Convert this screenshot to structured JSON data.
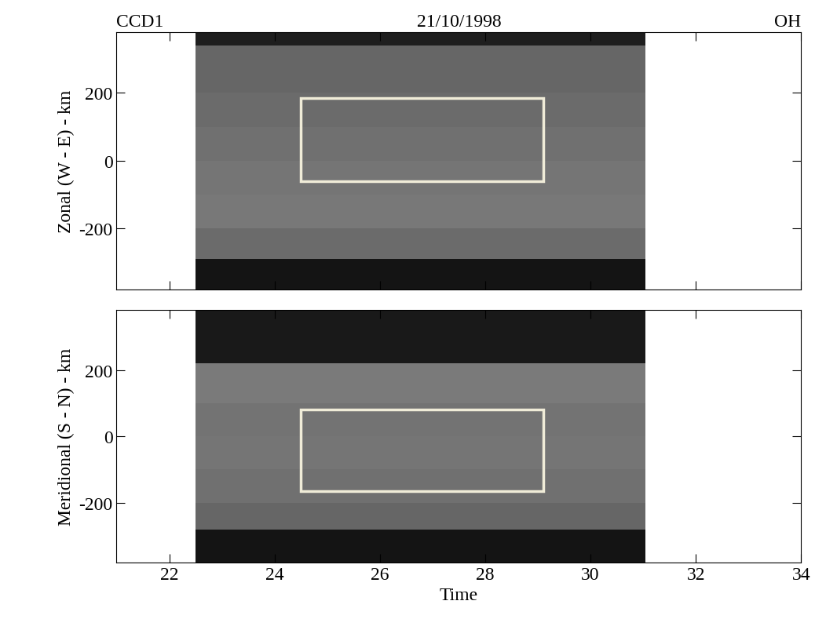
{
  "chart_data": [
    {
      "type": "heatmap",
      "annotations": [
        "CCD1",
        "21/10/1998",
        "OH"
      ],
      "ylabel": "Zonal (W - E) - km",
      "xlim": [
        21,
        34
      ],
      "xticks": [
        22,
        24,
        26,
        28,
        30,
        32,
        34
      ],
      "ylim": [
        -380,
        380
      ],
      "yticks": [
        -200,
        0,
        200
      ],
      "tick_labels": "y",
      "cells": {
        "x_edges": [
          22.5,
          31.05
        ],
        "y_edges": [
          -380,
          -290,
          -200,
          -100,
          0,
          100,
          200,
          340,
          380
        ],
        "values": [
          [
            0.08
          ],
          [
            0.42
          ],
          [
            0.47
          ],
          [
            0.46
          ],
          [
            0.44
          ],
          [
            0.42
          ],
          [
            0.4
          ],
          [
            0.12
          ]
        ],
        "color_range": [
          0,
          1
        ]
      },
      "boxes": [
        {
          "x": [
            24.5,
            29.1
          ],
          "y": [
            -60,
            185
          ],
          "color": "#f0ecd8"
        }
      ]
    },
    {
      "type": "heatmap",
      "xlabel": "Time",
      "ylabel": "Meridional (S - N) - km",
      "xlim": [
        21,
        34
      ],
      "xticks": [
        22,
        24,
        26,
        28,
        30,
        32,
        34
      ],
      "ylim": [
        -380,
        380
      ],
      "yticks": [
        -200,
        0,
        200
      ],
      "cells": {
        "x_edges": [
          22.5,
          31.05
        ],
        "y_edges": [
          -380,
          -280,
          -200,
          -100,
          0,
          100,
          220,
          380
        ],
        "values": [
          [
            0.08
          ],
          [
            0.4
          ],
          [
            0.44
          ],
          [
            0.46
          ],
          [
            0.45
          ],
          [
            0.48
          ],
          [
            0.1
          ]
        ],
        "color_range": [
          0,
          1
        ]
      },
      "boxes": [
        {
          "x": [
            24.5,
            29.1
          ],
          "y": [
            -165,
            80
          ],
          "color": "#f0ecd8"
        }
      ]
    }
  ]
}
